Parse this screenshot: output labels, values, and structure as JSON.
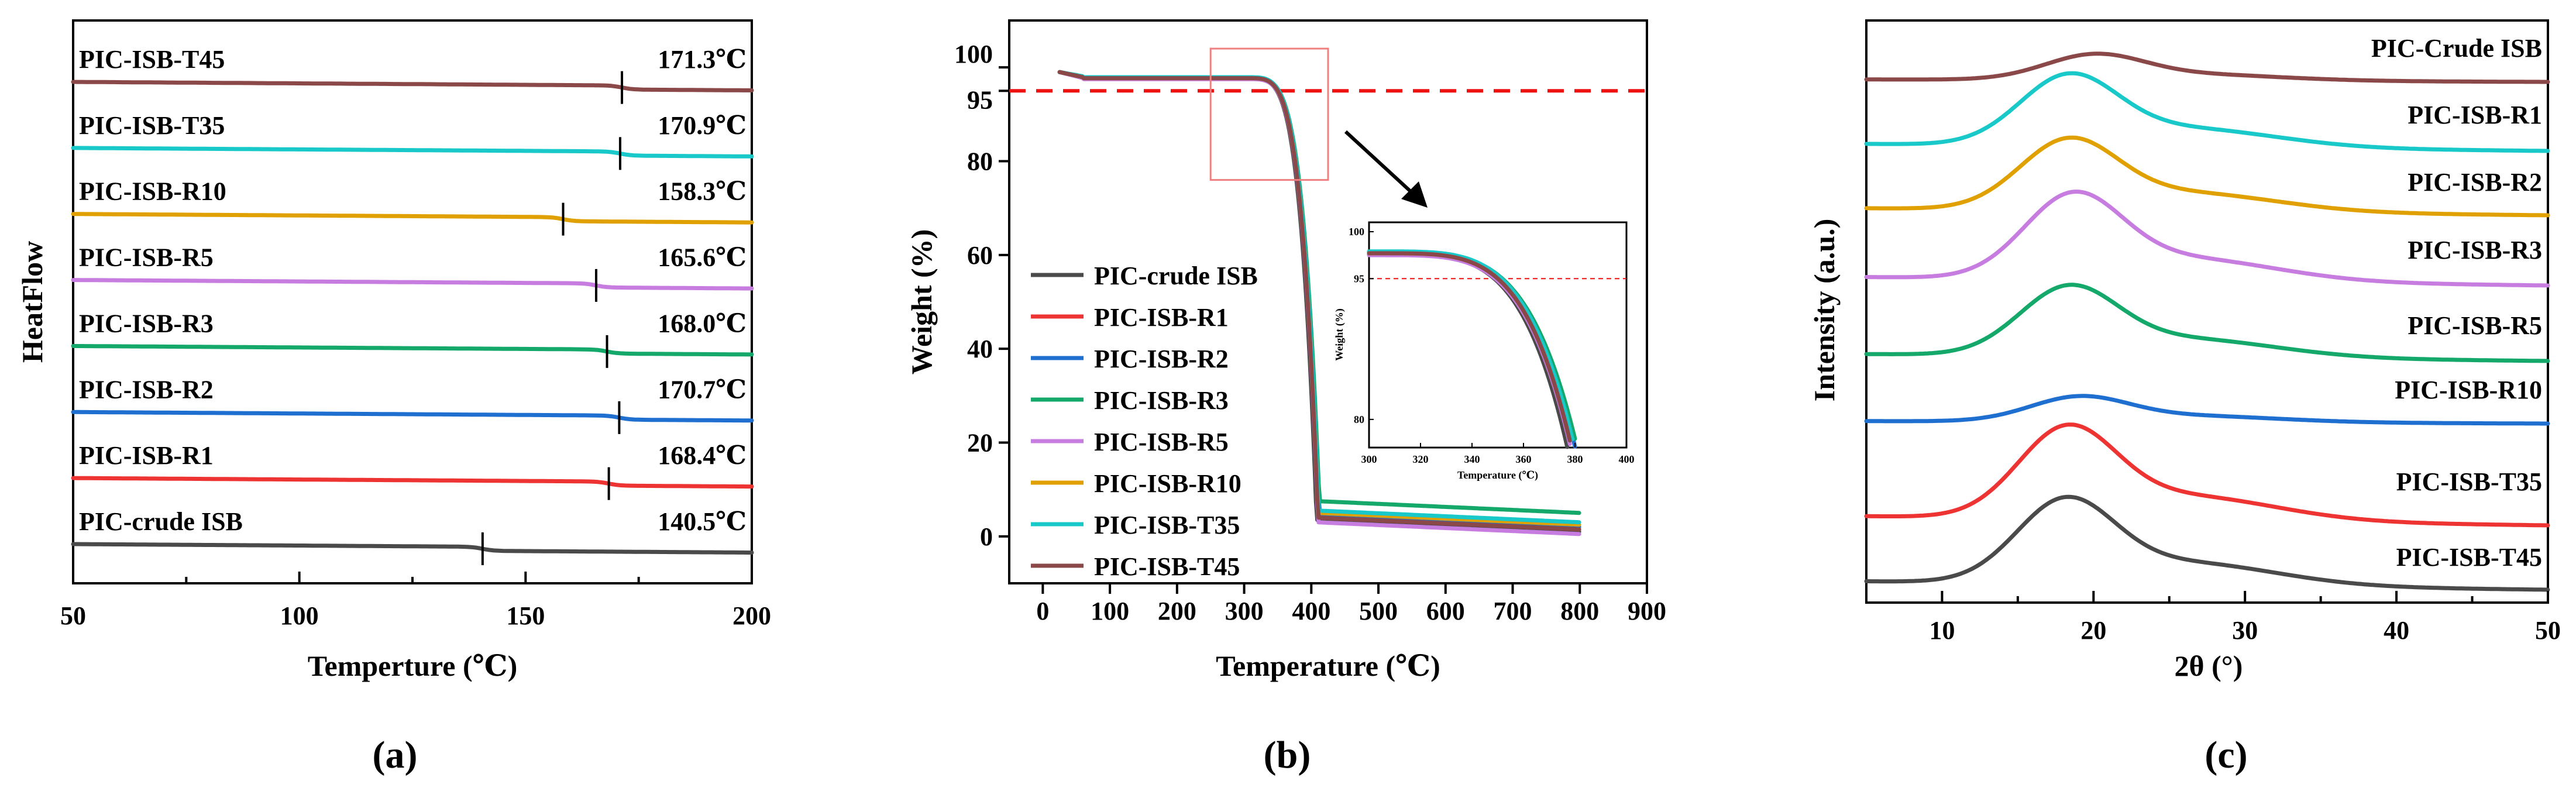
{
  "panels": {
    "a": {
      "label": "(a)"
    },
    "b": {
      "label": "(b)"
    },
    "c": {
      "label": "(c)"
    }
  },
  "colors": {
    "crude": "#4a4a4a",
    "R1": "#ee3333",
    "R2": "#1f6fd0",
    "R3": "#14a86a",
    "R5": "#c77ce0",
    "R10": "#e0a000",
    "T35": "#19c9c9",
    "T45": "#8b4848",
    "threshold": "#ee1111",
    "inset_box": "#f08080"
  },
  "chart_data": [
    {
      "panel": "a",
      "type": "line",
      "xlabel": "Temperture (℃)",
      "ylabel": "HeatFlow",
      "xlim": [
        50,
        200
      ],
      "xticks": [
        50,
        100,
        150,
        200
      ],
      "grid": false,
      "series": [
        {
          "name": "PIC-ISB-T45",
          "color_key": "T45",
          "tg": 171.3,
          "tg_label": "171.3℃"
        },
        {
          "name": "PIC-ISB-T35",
          "color_key": "T35",
          "tg": 170.9,
          "tg_label": "170.9℃"
        },
        {
          "name": "PIC-ISB-R10",
          "color_key": "R10",
          "tg": 158.3,
          "tg_label": "158.3℃"
        },
        {
          "name": "PIC-ISB-R5",
          "color_key": "R5",
          "tg": 165.6,
          "tg_label": "165.6℃"
        },
        {
          "name": "PIC-ISB-R3",
          "color_key": "R3",
          "tg": 168.0,
          "tg_label": "168.0℃"
        },
        {
          "name": "PIC-ISB-R2",
          "color_key": "R2",
          "tg": 170.7,
          "tg_label": "170.7℃"
        },
        {
          "name": "PIC-ISB-R1",
          "color_key": "R1",
          "tg": 168.4,
          "tg_label": "168.4℃"
        },
        {
          "name": "PIC-crude ISB",
          "color_key": "crude",
          "tg": 140.5,
          "tg_label": "140.5℃"
        }
      ]
    },
    {
      "panel": "b",
      "type": "line",
      "xlabel": "Temperature (℃)",
      "ylabel": "Weight (%)",
      "xlim": [
        -50,
        900
      ],
      "ylim": [
        -10,
        110
      ],
      "xticks": [
        0,
        100,
        200,
        300,
        400,
        500,
        600,
        700,
        800,
        900
      ],
      "yticks": [
        0,
        20,
        40,
        60,
        80,
        95,
        100
      ],
      "threshold": 95,
      "highlight_region": {
        "x": [
          250,
          425
        ],
        "y": [
          76,
          104
        ]
      },
      "legend_position": "lower-left",
      "grid": false,
      "series": [
        {
          "name": "PIC-crude ISB",
          "color_key": "crude",
          "plateau": 97.6,
          "onset": 340,
          "end": 408,
          "residue": 1.0,
          "x": [
            25,
            200,
            340,
            408,
            800
          ],
          "values": [
            99,
            97.6,
            95,
            3,
            1.0
          ]
        },
        {
          "name": "PIC-ISB-R1",
          "color_key": "R1",
          "plateau": 97.8,
          "onset": 342,
          "end": 410,
          "residue": 1.5,
          "x": [
            25,
            200,
            342,
            410,
            800
          ],
          "values": [
            99,
            97.8,
            95,
            3,
            1.5
          ]
        },
        {
          "name": "PIC-ISB-R2",
          "color_key": "R2",
          "plateau": 97.6,
          "onset": 347,
          "end": 412,
          "residue": 2.0,
          "x": [
            25,
            200,
            347,
            412,
            800
          ],
          "values": [
            99,
            97.6,
            95,
            4,
            2.0
          ]
        },
        {
          "name": "PIC-ISB-R3",
          "color_key": "R3",
          "plateau": 97.8,
          "onset": 346,
          "end": 412,
          "residue": 5.0,
          "x": [
            25,
            200,
            346,
            412,
            800
          ],
          "values": [
            99,
            97.8,
            95,
            7,
            5.0
          ]
        },
        {
          "name": "PIC-ISB-R5",
          "color_key": "R5",
          "plateau": 97.5,
          "onset": 344,
          "end": 410,
          "residue": 0.5,
          "x": [
            25,
            200,
            344,
            410,
            800
          ],
          "values": [
            99,
            97.5,
            95,
            2.5,
            0.5
          ]
        },
        {
          "name": "PIC-ISB-R10",
          "color_key": "R10",
          "plateau": 97.7,
          "onset": 343,
          "end": 410,
          "residue": 2.5,
          "x": [
            25,
            200,
            343,
            410,
            800
          ],
          "values": [
            99,
            97.7,
            95,
            4.5,
            2.5
          ]
        },
        {
          "name": "PIC-ISB-T35",
          "color_key": "T35",
          "plateau": 97.9,
          "onset": 345,
          "end": 411,
          "residue": 3.0,
          "x": [
            25,
            200,
            345,
            411,
            800
          ],
          "values": [
            99,
            97.9,
            95,
            5.5,
            3.0
          ]
        },
        {
          "name": "PIC-ISB-T45",
          "color_key": "T45",
          "plateau": 97.7,
          "onset": 344,
          "end": 410,
          "residue": 1.5,
          "x": [
            25,
            200,
            344,
            410,
            800
          ],
          "values": [
            99,
            97.7,
            95,
            3.5,
            1.5
          ]
        }
      ],
      "inset": {
        "xlabel": "Temperature (℃)",
        "ylabel": "Weight (%)",
        "xlim": [
          300,
          400
        ],
        "ylim": [
          77,
          101
        ],
        "xticks": [
          300,
          320,
          340,
          360,
          380,
          400
        ],
        "yticks": [
          80,
          95,
          100
        ],
        "threshold": 95
      }
    },
    {
      "panel": "c",
      "type": "line",
      "xlabel": "2θ (°)",
      "ylabel": "Intensity (a.u.)",
      "xlim": [
        5,
        50
      ],
      "xticks": [
        10,
        20,
        30,
        40,
        50
      ],
      "grid": false,
      "series": [
        {
          "name": "PIC-Crude ISB",
          "color_key": "T45",
          "peak": 20.0,
          "height": 0.35
        },
        {
          "name": "PIC-ISB-R1",
          "color_key": "T35",
          "peak": 18.3,
          "height": 1.0
        },
        {
          "name": "PIC-ISB-R2",
          "color_key": "R10",
          "peak": 18.3,
          "height": 1.0
        },
        {
          "name": "PIC-ISB-R3",
          "color_key": "R5",
          "peak": 18.6,
          "height": 1.2
        },
        {
          "name": "PIC-ISB-R5",
          "color_key": "R3",
          "peak": 18.3,
          "height": 0.98
        },
        {
          "name": "PIC-ISB-R10",
          "color_key": "R2",
          "peak": 19.0,
          "height": 0.35
        },
        {
          "name": "PIC-ISB-T35",
          "color_key": "R1",
          "peak": 18.2,
          "height": 1.3
        },
        {
          "name": "PIC-ISB-T45",
          "color_key": "crude",
          "peak": 18.1,
          "height": 1.2
        }
      ]
    }
  ]
}
